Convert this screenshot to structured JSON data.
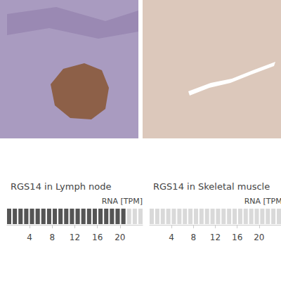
{
  "chart_data": [
    {
      "type": "bar",
      "orientation": "horizontal",
      "title": "RGS14 in Lymph node",
      "xlabel": "RNA [TPM]",
      "values": [
        21
      ],
      "xlim": [
        0,
        24
      ],
      "xticks": [
        4,
        8,
        12,
        16,
        20
      ],
      "color": "#555555"
    },
    {
      "type": "bar",
      "orientation": "horizontal",
      "title": "RGS14 in Skeletal muscle",
      "xlabel": "RNA [TPM]",
      "values": [
        0
      ],
      "xlim": [
        0,
        24
      ],
      "xticks": [
        4,
        8,
        12,
        16,
        20
      ],
      "color": "#555555"
    }
  ]
}
